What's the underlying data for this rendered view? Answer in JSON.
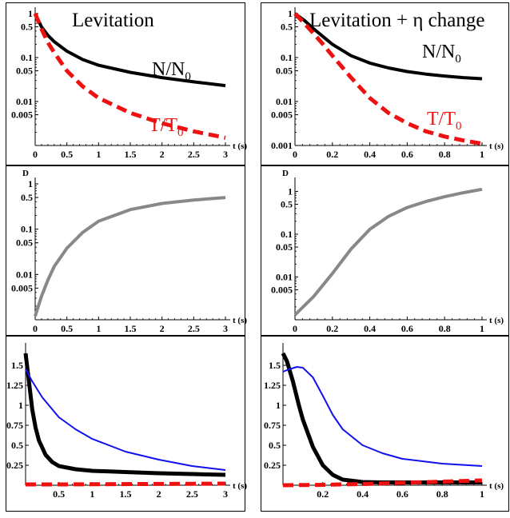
{
  "chart_data": [
    {
      "type": "line",
      "panel": "top-left",
      "title": "Levitation",
      "xlabel": "t (s)",
      "ylabel": "",
      "xlim": [
        0,
        3
      ],
      "ylim": [
        0.001,
        1
      ],
      "yscale": "log",
      "xticks": [
        "0",
        "0.5",
        "1",
        "1.5",
        "2",
        "2.5",
        "3"
      ],
      "yticks": [
        "1",
        "0.5",
        "0.1",
        "0.05",
        "0.01",
        "0.005"
      ],
      "series": [
        {
          "name": "N/N0",
          "label_main": "N/N",
          "label_sub": "0",
          "color": "#000000",
          "style": "solid",
          "x": [
            0,
            0.1,
            0.2,
            0.3,
            0.5,
            0.75,
            1,
            1.5,
            2,
            2.5,
            3
          ],
          "y": [
            1,
            0.5,
            0.32,
            0.23,
            0.14,
            0.09,
            0.067,
            0.046,
            0.035,
            0.028,
            0.023
          ]
        },
        {
          "name": "T/T0",
          "label_main": "T/T",
          "label_sub": "0",
          "color": "#ee1111",
          "style": "dashed",
          "x": [
            0,
            0.1,
            0.2,
            0.3,
            0.5,
            0.75,
            1,
            1.5,
            2,
            2.5,
            3
          ],
          "y": [
            1,
            0.45,
            0.22,
            0.13,
            0.05,
            0.022,
            0.012,
            0.0055,
            0.0032,
            0.0021,
            0.0015
          ]
        }
      ]
    },
    {
      "type": "line",
      "panel": "top-right",
      "title": "Levitation + η change",
      "xlabel": "t (s)",
      "ylabel": "",
      "xlim": [
        0,
        1
      ],
      "ylim": [
        0.001,
        1
      ],
      "yscale": "log",
      "xticks": [
        "0",
        "0.2",
        "0.4",
        "0.6",
        "0.8",
        "1"
      ],
      "yticks": [
        "1",
        "0.5",
        "0.1",
        "0.05",
        "0.01",
        "0.005",
        "0.001"
      ],
      "series": [
        {
          "name": "N/N0",
          "label_main": "N/N",
          "label_sub": "0",
          "color": "#000000",
          "style": "solid",
          "x": [
            0,
            0.05,
            0.1,
            0.15,
            0.2,
            0.3,
            0.4,
            0.5,
            0.6,
            0.7,
            0.8,
            0.9,
            1
          ],
          "y": [
            1,
            0.7,
            0.45,
            0.3,
            0.2,
            0.11,
            0.075,
            0.058,
            0.048,
            0.042,
            0.038,
            0.035,
            0.033
          ]
        },
        {
          "name": "T/T0",
          "label_main": "T/T",
          "label_sub": "0",
          "color": "#ee1111",
          "style": "dashed",
          "x": [
            0,
            0.05,
            0.1,
            0.15,
            0.2,
            0.3,
            0.4,
            0.5,
            0.6,
            0.7,
            0.8,
            0.9,
            1
          ],
          "y": [
            1,
            0.6,
            0.35,
            0.2,
            0.11,
            0.035,
            0.012,
            0.0055,
            0.0032,
            0.0021,
            0.0016,
            0.0013,
            0.0011
          ]
        }
      ]
    },
    {
      "type": "line",
      "panel": "middle-left",
      "title": "",
      "xlabel": "t (s)",
      "ylabel": "D",
      "xlim": [
        0,
        3
      ],
      "ylim": [
        0.001,
        1
      ],
      "yscale": "log",
      "xticks": [
        "0",
        "0.5",
        "1",
        "1.5",
        "2",
        "2.5",
        "3"
      ],
      "yticks": [
        "1",
        "0.5",
        "0.1",
        "0.05",
        "0.01",
        "0.005"
      ],
      "series": [
        {
          "color": "#888888",
          "style": "solid",
          "x": [
            0,
            0.1,
            0.2,
            0.3,
            0.5,
            0.75,
            1,
            1.5,
            2,
            2.5,
            3
          ],
          "y": [
            0.0012,
            0.0033,
            0.0075,
            0.015,
            0.038,
            0.085,
            0.15,
            0.27,
            0.37,
            0.44,
            0.5
          ]
        }
      ]
    },
    {
      "type": "line",
      "panel": "middle-right",
      "title": "",
      "xlabel": "t (s)",
      "ylabel": "D",
      "xlim": [
        0,
        1
      ],
      "ylim": [
        0.001,
        1.5
      ],
      "yscale": "log",
      "xticks": [
        "0",
        "0.2",
        "0.4",
        "0.6",
        "0.8",
        "1"
      ],
      "yticks": [
        "1",
        "0.5",
        "0.1",
        "0.05",
        "0.01",
        "0.005"
      ],
      "series": [
        {
          "color": "#888888",
          "style": "solid",
          "x": [
            0,
            0.1,
            0.2,
            0.3,
            0.4,
            0.5,
            0.6,
            0.7,
            0.8,
            0.9,
            1
          ],
          "y": [
            0.0013,
            0.0035,
            0.012,
            0.045,
            0.13,
            0.26,
            0.42,
            0.58,
            0.75,
            0.93,
            1.12
          ]
        }
      ]
    },
    {
      "type": "line",
      "panel": "bottom-left",
      "title": "",
      "xlabel": "t (s)",
      "ylabel": "",
      "xlim": [
        0,
        3
      ],
      "ylim": [
        0,
        1.7
      ],
      "yscale": "linear",
      "xticks": [
        "0.5",
        "1",
        "1.5",
        "2",
        "2.5",
        "3"
      ],
      "yticks": [
        "1.5",
        "1.25",
        "1",
        "0.75",
        "0.5",
        "0.25"
      ],
      "series": [
        {
          "color": "#000000",
          "style": "solid",
          "x": [
            0,
            0.05,
            0.1,
            0.15,
            0.2,
            0.3,
            0.4,
            0.5,
            0.75,
            1,
            1.5,
            2,
            2.5,
            3
          ],
          "y": [
            1.65,
            1.3,
            0.95,
            0.72,
            0.56,
            0.38,
            0.29,
            0.24,
            0.2,
            0.18,
            0.165,
            0.15,
            0.14,
            0.13
          ]
        },
        {
          "color": "#1111ee",
          "style": "solid",
          "x": [
            0,
            0.1,
            0.25,
            0.5,
            0.75,
            1,
            1.5,
            2,
            2.5,
            3
          ],
          "y": [
            1.45,
            1.3,
            1.1,
            0.85,
            0.7,
            0.58,
            0.42,
            0.32,
            0.24,
            0.19
          ]
        },
        {
          "color": "#ee1111",
          "style": "dashed",
          "x": [
            0,
            0.5,
            1,
            1.5,
            2,
            2.5,
            3
          ],
          "y": [
            0.01,
            0.01,
            0.012,
            0.014,
            0.016,
            0.018,
            0.02
          ]
        }
      ]
    },
    {
      "type": "line",
      "panel": "bottom-right",
      "title": "",
      "xlabel": "t (s)",
      "ylabel": "",
      "xlim": [
        0,
        1
      ],
      "ylim": [
        0,
        1.7
      ],
      "yscale": "linear",
      "xticks": [
        "0.2",
        "0.4",
        "0.6",
        "0.8",
        "1"
      ],
      "yticks": [
        "1.5",
        "1.25",
        "1",
        "0.75",
        "0.5",
        "0.25"
      ],
      "series": [
        {
          "color": "#000000",
          "style": "solid",
          "x": [
            0,
            0.02,
            0.05,
            0.08,
            0.1,
            0.15,
            0.2,
            0.25,
            0.3,
            0.4,
            0.5,
            0.7,
            1
          ],
          "y": [
            1.65,
            1.55,
            1.3,
            1.0,
            0.82,
            0.48,
            0.25,
            0.13,
            0.07,
            0.04,
            0.035,
            0.035,
            0.035
          ]
        },
        {
          "color": "#1111ee",
          "style": "solid",
          "x": [
            0,
            0.03,
            0.07,
            0.1,
            0.15,
            0.2,
            0.25,
            0.3,
            0.4,
            0.5,
            0.6,
            0.8,
            1
          ],
          "y": [
            1.42,
            1.45,
            1.48,
            1.47,
            1.35,
            1.12,
            0.88,
            0.7,
            0.5,
            0.4,
            0.33,
            0.27,
            0.24
          ]
        },
        {
          "color": "#ee1111",
          "style": "dashed",
          "x": [
            0,
            0.2,
            0.4,
            0.6,
            0.8,
            1
          ],
          "y": [
            0.0,
            0.005,
            0.015,
            0.03,
            0.045,
            0.06
          ]
        }
      ]
    }
  ]
}
